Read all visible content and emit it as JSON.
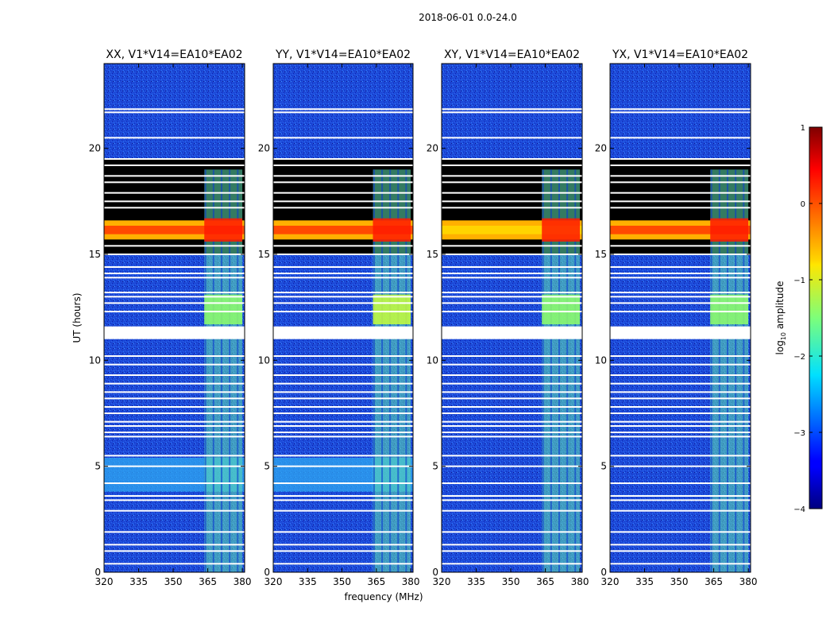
{
  "figure": {
    "suptitle": "2018-06-01 0.0-24.0"
  },
  "chart_data": [
    {
      "type": "heatmap",
      "title": "XX, V1*V14=EA10*EA02",
      "xlabel": "",
      "ylabel": "UT (hours)",
      "xlim": [
        320,
        381
      ],
      "ylim": [
        0,
        24
      ],
      "xticks": [
        320,
        335,
        350,
        365,
        380
      ],
      "yticks": [
        0,
        5,
        10,
        15,
        20
      ]
    },
    {
      "type": "heatmap",
      "title": "YY, V1*V14=EA10*EA02",
      "xlabel": "frequency (MHz)",
      "ylabel": "",
      "xlim": [
        320,
        381
      ],
      "ylim": [
        0,
        24
      ],
      "xticks": [
        320,
        335,
        350,
        365,
        380
      ],
      "yticks": [
        0,
        5,
        10,
        15,
        20
      ]
    },
    {
      "type": "heatmap",
      "title": "XY, V1*V14=EA10*EA02",
      "xlabel": "",
      "ylabel": "",
      "xlim": [
        320,
        381
      ],
      "ylim": [
        0,
        24
      ],
      "xticks": [
        320,
        335,
        350,
        365,
        380
      ],
      "yticks": [
        0,
        5,
        10,
        15,
        20
      ]
    },
    {
      "type": "heatmap",
      "title": "YX, V1*V14=EA10*EA02",
      "xlabel": "",
      "ylabel": "",
      "xlim": [
        320,
        381
      ],
      "ylim": [
        0,
        24
      ],
      "xticks": [
        320,
        335,
        350,
        365,
        380
      ],
      "yticks": [
        0,
        5,
        10,
        15,
        20
      ]
    }
  ],
  "colorbar": {
    "label": "log10 amplitude",
    "label_prefix": "log",
    "label_sub": "10",
    "label_suffix": " amplitude",
    "min": -4,
    "max": 1,
    "ticks": [
      1,
      0,
      -1,
      -2,
      -3,
      -4
    ],
    "tick_labels": [
      "1",
      "0",
      "−1",
      "−2",
      "−3",
      "−4"
    ],
    "colormap": "jet"
  },
  "colors": {
    "background": "#ffffff",
    "noise_blue": "#1f4fe6",
    "rfi_band": "#5fe0b0",
    "hot_band": "#ff3300",
    "flagged": "#ffffff",
    "no_data": "#000000"
  }
}
